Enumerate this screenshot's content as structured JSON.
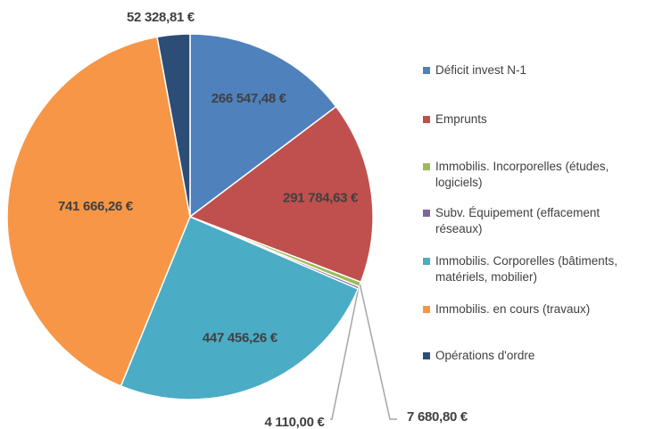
{
  "chart_data": {
    "type": "pie",
    "categories": [
      "Déficit invest N-1",
      "Emprunts",
      "Immobilis. Incorporelles (études, logiciels)",
      "Subv. Équipement (effacement réseaux)",
      "Immobilis. Corporelles (bâtiments, matériels, mobilier)",
      "Immobilis. en cours (travaux)",
      "Opérations d'ordre"
    ],
    "values": [
      266547.48,
      291784.63,
      7680.8,
      4110.0,
      447456.26,
      741666.26,
      52328.81
    ],
    "value_labels": [
      "266 547,48 €",
      "291 784,63 €",
      "7 680,80 €",
      "4 110,00 €",
      "447 456,26 €",
      "741 666,26 €",
      "52 328,81 €"
    ],
    "colors": [
      "#4f81bd",
      "#c0504d",
      "#9bbb59",
      "#8064a2",
      "#4bacc6",
      "#f79646",
      "#2c4d75"
    ],
    "legend": "right"
  }
}
